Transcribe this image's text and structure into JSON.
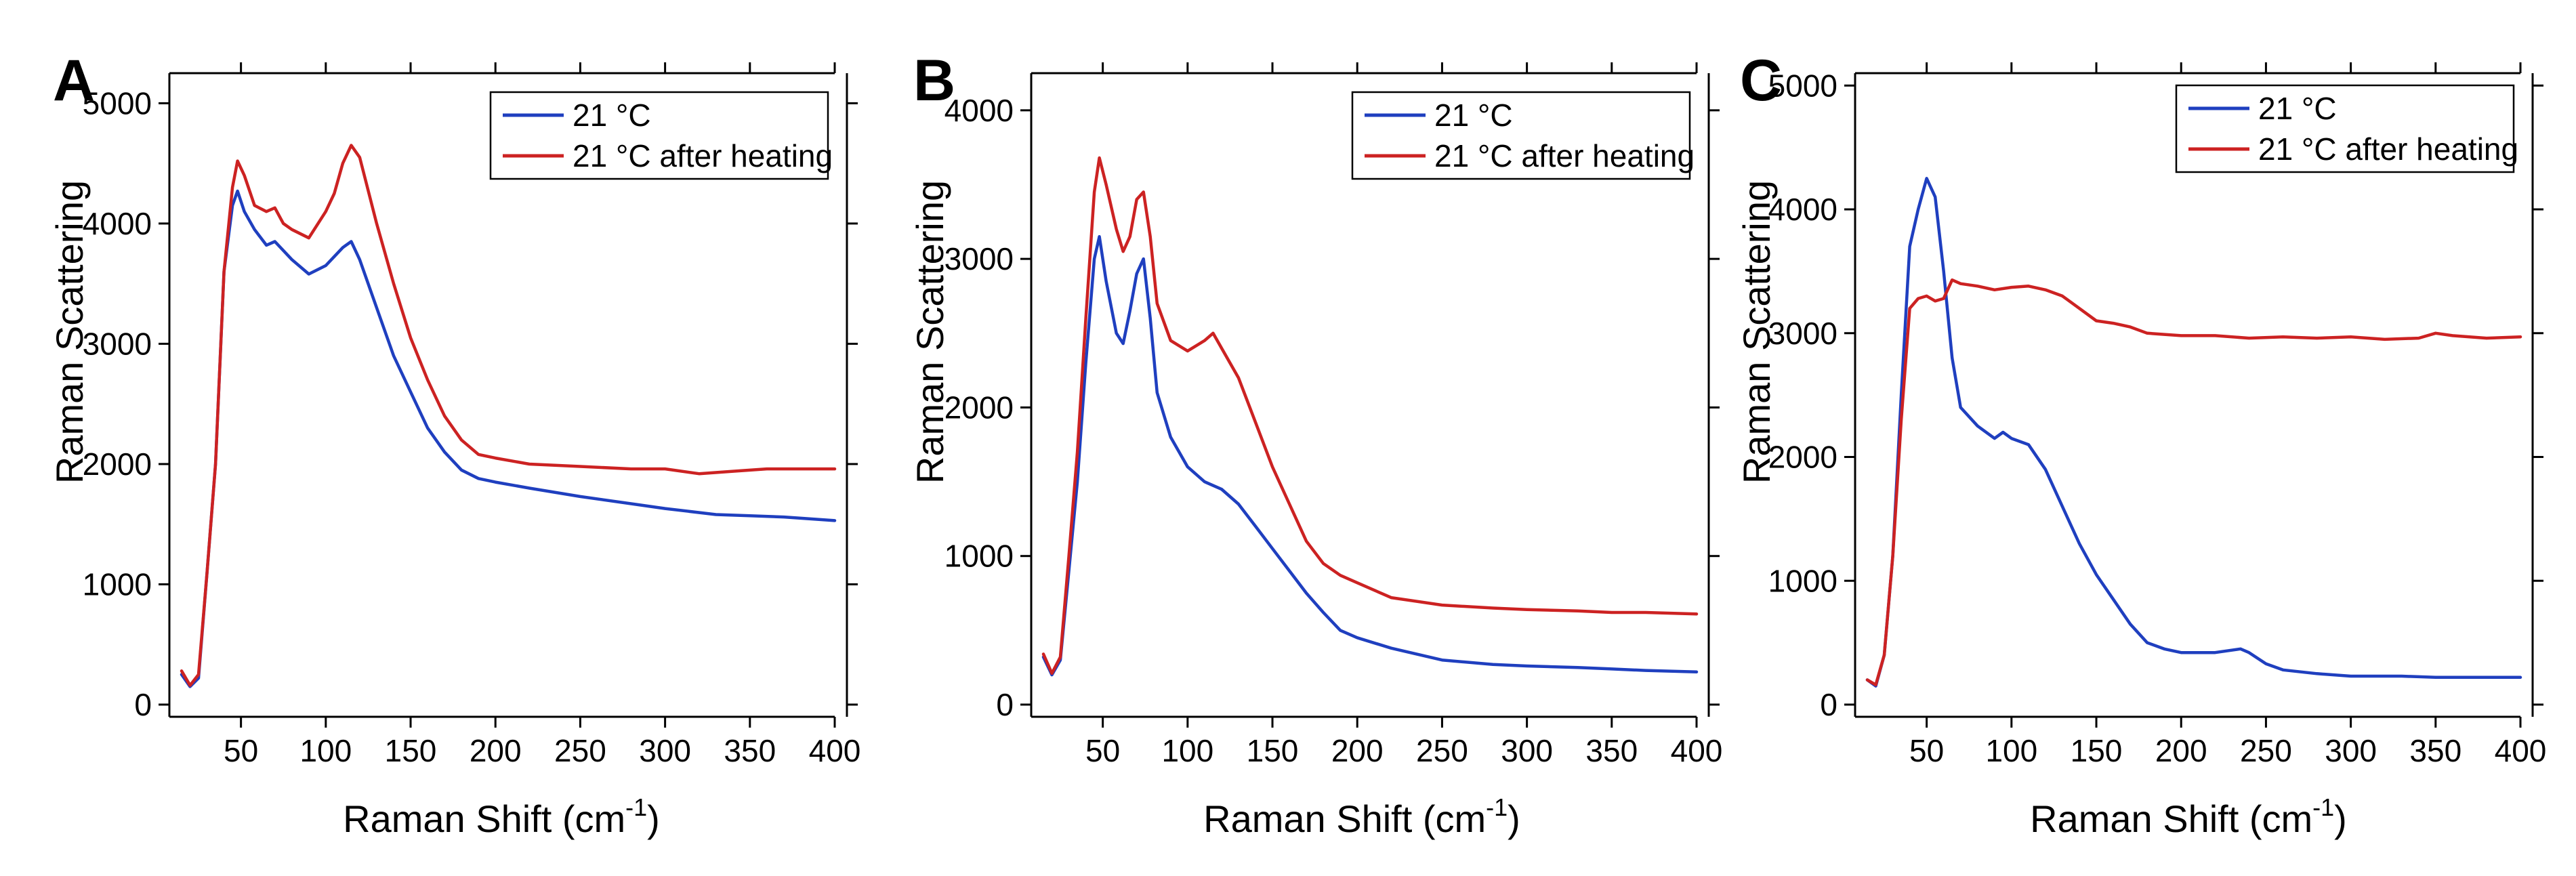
{
  "colors": {
    "s1": "#1f3fbf",
    "s2": "#cc2222"
  },
  "chart_data": [
    {
      "type": "line",
      "panel_label": "A",
      "xlabel": "Raman Shift (cm",
      "xlabel_sup": "-1",
      "xlabel_close": ")",
      "ylabel": "Raman Scattering",
      "xlim": [
        15,
        400
      ],
      "ylim": [
        0,
        5250
      ],
      "xticks": [
        50,
        100,
        150,
        200,
        250,
        300,
        350,
        400
      ],
      "yticks": [
        0,
        1000,
        2000,
        3000,
        4000,
        5000
      ],
      "legend_position": "top-right",
      "series": [
        {
          "name": "21 °C",
          "color": "#1f3fbf",
          "x": [
            15,
            20,
            25,
            30,
            35,
            40,
            45,
            48,
            52,
            58,
            65,
            70,
            80,
            90,
            100,
            110,
            115,
            120,
            130,
            140,
            150,
            160,
            170,
            180,
            190,
            200,
            220,
            250,
            280,
            300,
            330,
            350,
            370,
            390,
            400
          ],
          "y": [
            250,
            150,
            220,
            1100,
            2000,
            3600,
            4150,
            4270,
            4100,
            3950,
            3820,
            3850,
            3700,
            3580,
            3650,
            3800,
            3850,
            3700,
            3300,
            2900,
            2600,
            2300,
            2100,
            1950,
            1880,
            1850,
            1800,
            1730,
            1670,
            1630,
            1580,
            1570,
            1560,
            1540,
            1530
          ]
        },
        {
          "name": "21 °C after heating",
          "color": "#cc2222",
          "x": [
            15,
            20,
            25,
            30,
            35,
            40,
            45,
            48,
            52,
            58,
            65,
            70,
            75,
            80,
            90,
            100,
            105,
            110,
            115,
            120,
            130,
            140,
            150,
            160,
            170,
            180,
            190,
            200,
            220,
            250,
            280,
            300,
            320,
            340,
            360,
            380,
            400
          ],
          "y": [
            280,
            160,
            250,
            1100,
            2000,
            3600,
            4300,
            4520,
            4400,
            4150,
            4100,
            4130,
            4000,
            3950,
            3880,
            4100,
            4250,
            4500,
            4650,
            4550,
            4000,
            3500,
            3050,
            2700,
            2400,
            2200,
            2080,
            2050,
            2000,
            1980,
            1960,
            1960,
            1920,
            1940,
            1960,
            1960,
            1960
          ]
        }
      ]
    },
    {
      "type": "line",
      "panel_label": "B",
      "xlabel": "Raman Shift (cm",
      "xlabel_sup": "-1",
      "xlabel_close": ")",
      "ylabel": "Raman Scattering",
      "xlim": [
        15,
        400
      ],
      "ylim": [
        0,
        4250
      ],
      "xticks": [
        50,
        100,
        150,
        200,
        250,
        300,
        350,
        400
      ],
      "yticks": [
        0,
        1000,
        2000,
        3000,
        4000
      ],
      "legend_position": "top-right",
      "series": [
        {
          "name": "21 °C",
          "color": "#1f3fbf",
          "x": [
            15,
            20,
            25,
            30,
            35,
            40,
            45,
            48,
            52,
            58,
            62,
            66,
            70,
            74,
            78,
            82,
            90,
            100,
            110,
            120,
            130,
            140,
            150,
            160,
            170,
            180,
            190,
            200,
            220,
            250,
            280,
            300,
            330,
            350,
            370,
            400
          ],
          "y": [
            320,
            200,
            300,
            900,
            1500,
            2300,
            3000,
            3150,
            2850,
            2500,
            2430,
            2650,
            2900,
            3000,
            2600,
            2100,
            1800,
            1600,
            1500,
            1450,
            1350,
            1200,
            1050,
            900,
            750,
            620,
            500,
            450,
            380,
            300,
            270,
            260,
            250,
            240,
            230,
            220
          ]
        },
        {
          "name": "21 °C after heating",
          "color": "#cc2222",
          "x": [
            15,
            20,
            25,
            30,
            35,
            40,
            45,
            48,
            52,
            58,
            62,
            66,
            70,
            74,
            78,
            82,
            90,
            100,
            110,
            115,
            120,
            130,
            140,
            150,
            160,
            170,
            180,
            190,
            200,
            220,
            250,
            280,
            300,
            330,
            350,
            370,
            400
          ],
          "y": [
            340,
            210,
            320,
            1000,
            1700,
            2600,
            3450,
            3680,
            3500,
            3200,
            3050,
            3150,
            3400,
            3450,
            3150,
            2700,
            2450,
            2380,
            2450,
            2500,
            2400,
            2200,
            1900,
            1600,
            1350,
            1100,
            950,
            870,
            820,
            720,
            670,
            650,
            640,
            630,
            620,
            620,
            610
          ]
        }
      ]
    },
    {
      "type": "line",
      "panel_label": "C",
      "xlabel": "Raman Shift (cm",
      "xlabel_sup": "-1",
      "xlabel_close": ")",
      "ylabel": "Raman Scattering",
      "xlim": [
        15,
        400
      ],
      "ylim": [
        0,
        5100
      ],
      "xticks": [
        50,
        100,
        150,
        200,
        250,
        300,
        350,
        400
      ],
      "yticks": [
        0,
        1000,
        2000,
        3000,
        4000,
        5000
      ],
      "legend_position": "top-right",
      "series": [
        {
          "name": "21 °C",
          "color": "#1f3fbf",
          "x": [
            15,
            20,
            25,
            30,
            35,
            40,
            45,
            50,
            55,
            60,
            65,
            70,
            80,
            90,
            95,
            100,
            110,
            120,
            130,
            140,
            150,
            160,
            170,
            180,
            190,
            200,
            220,
            235,
            240,
            250,
            260,
            280,
            300,
            330,
            350,
            370,
            400
          ],
          "y": [
            200,
            150,
            400,
            1200,
            2500,
            3700,
            4000,
            4250,
            4100,
            3500,
            2800,
            2400,
            2250,
            2150,
            2200,
            2150,
            2100,
            1900,
            1600,
            1300,
            1050,
            850,
            650,
            500,
            450,
            420,
            420,
            450,
            420,
            330,
            280,
            250,
            230,
            230,
            220,
            220,
            220
          ]
        },
        {
          "name": "21 °C after heating",
          "color": "#cc2222",
          "x": [
            15,
            20,
            25,
            30,
            35,
            40,
            45,
            50,
            55,
            60,
            65,
            70,
            80,
            90,
            100,
            110,
            120,
            130,
            140,
            150,
            160,
            170,
            180,
            190,
            200,
            220,
            240,
            260,
            280,
            300,
            320,
            340,
            350,
            360,
            380,
            400
          ],
          "y": [
            200,
            160,
            400,
            1200,
            2300,
            3200,
            3280,
            3300,
            3260,
            3280,
            3430,
            3400,
            3380,
            3350,
            3370,
            3380,
            3350,
            3300,
            3200,
            3100,
            3080,
            3050,
            3000,
            2990,
            2980,
            2980,
            2960,
            2970,
            2960,
            2970,
            2950,
            2960,
            3000,
            2980,
            2960,
            2970
          ]
        }
      ]
    }
  ]
}
